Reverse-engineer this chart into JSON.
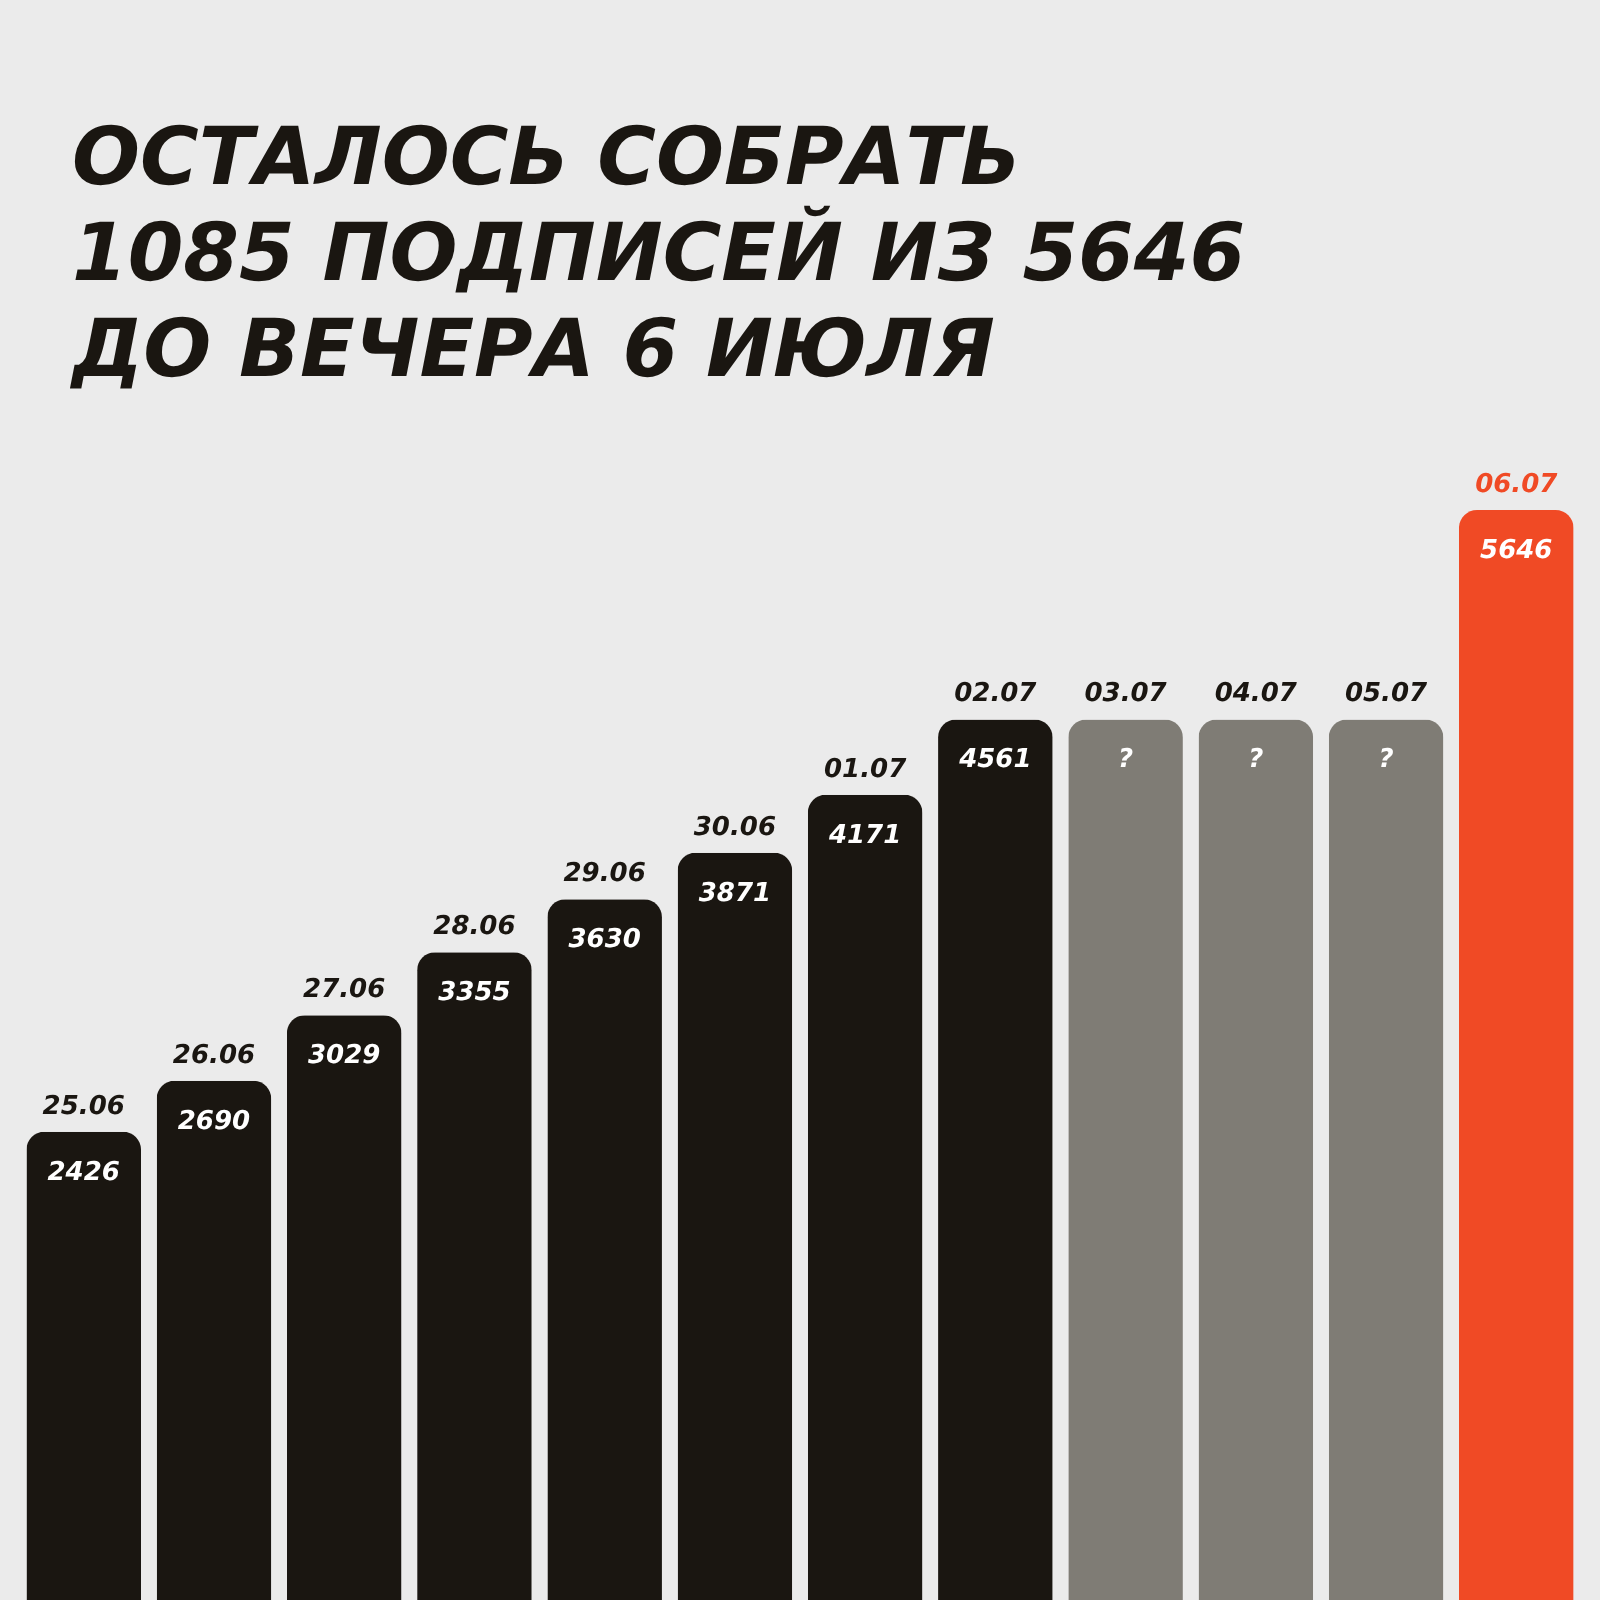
{
  "chart_data": {
    "type": "bar",
    "title": [
      "ОСТАЛОСЬ СОБРАТЬ",
      "1085 ПОДПИСЕЙ ИЗ 5646",
      "ДО ВЕЧЕРА 6 ИЮЛЯ"
    ],
    "categories": [
      "25.06",
      "26.06",
      "27.06",
      "28.06",
      "29.06",
      "30.06",
      "01.07",
      "02.07",
      "03.07",
      "04.07",
      "05.07",
      "06.07"
    ],
    "values": [
      2426,
      2690,
      3029,
      3355,
      3630,
      3871,
      4171,
      4561,
      4561,
      4561,
      4561,
      5646
    ],
    "value_labels": [
      "2426",
      "2690",
      "3029",
      "3355",
      "3630",
      "3871",
      "4171",
      "4561",
      "?",
      "?",
      "?",
      "5646"
    ],
    "colors": [
      "#1a1611",
      "#1a1611",
      "#1a1611",
      "#1a1611",
      "#1a1611",
      "#1a1611",
      "#1a1611",
      "#1a1611",
      "#7f7c75",
      "#7f7c75",
      "#7f7c75",
      "#f04a25"
    ],
    "tick_labels": false,
    "grid": false
  }
}
